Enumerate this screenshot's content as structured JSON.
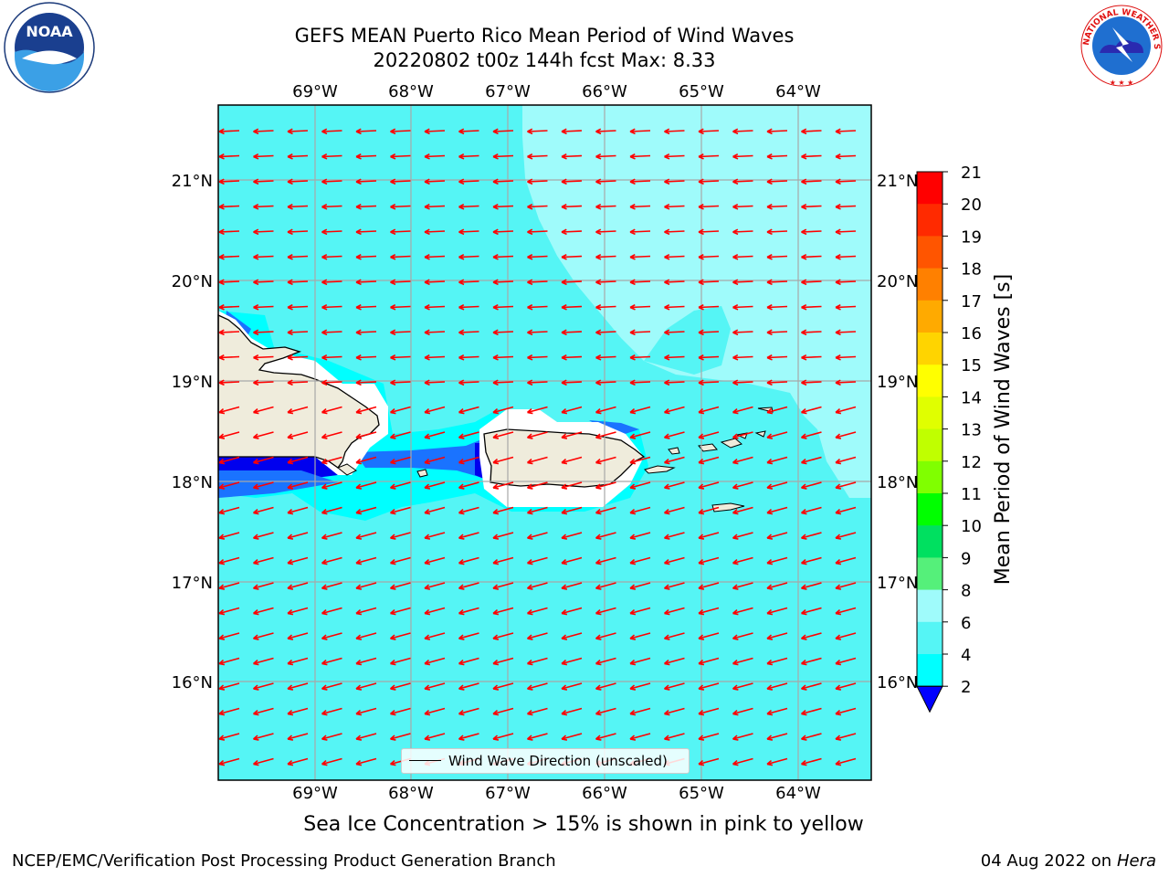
{
  "title": {
    "line1": "GEFS MEAN Puerto Rico Mean Period of Wind Waves",
    "line2": "20220802 t00z 144h fcst   Max: 8.33"
  },
  "logos": {
    "left": {
      "name": "noaa-logo",
      "text": "NOAA"
    },
    "right": {
      "name": "nws-logo",
      "text": "NATIONAL WEATHER SERVICE"
    }
  },
  "map": {
    "lon_labels": [
      "69°W",
      "68°W",
      "67°W",
      "66°W",
      "65°W",
      "64°W"
    ],
    "lat_labels": [
      "21°N",
      "20°N",
      "19°N",
      "18°N",
      "17°N",
      "16°N"
    ],
    "extent": {
      "lon_min": -70.0,
      "lon_max": -63.25,
      "lat_min": 15.0,
      "lat_max": 21.75
    },
    "ocean_color": "#55f5f5",
    "land_color": "#efecdc",
    "arrow_color": "#ff0000",
    "arrow_direction": "toward west-southwest"
  },
  "legend_label": "Wind Wave Direction (unscaled)",
  "colorbar": {
    "label": "Mean Period of Wind Waves [s]",
    "ticks": [
      "21",
      "20",
      "19",
      "18",
      "17",
      "16",
      "15",
      "14",
      "13",
      "12",
      "11",
      "10",
      "9",
      "8",
      "6",
      "4",
      "2"
    ],
    "colors": [
      "#ff0000",
      "#ff2a00",
      "#ff5500",
      "#ff8000",
      "#ffaa00",
      "#ffd400",
      "#ffff00",
      "#e0ff00",
      "#c0ff00",
      "#80ff00",
      "#00ff00",
      "#00e060",
      "#55f07a",
      "#9ffbfb",
      "#55f5f5",
      "#00ffff",
      "#0080ff",
      "#0000ff"
    ]
  },
  "ice_note": "Sea Ice Concentration > 15% is shown in pink to yellow",
  "footer": {
    "left": "NCEP/EMC/Verification Post Processing Product Generation Branch",
    "date": "04 Aug 2022 on",
    "host": "Hera"
  }
}
